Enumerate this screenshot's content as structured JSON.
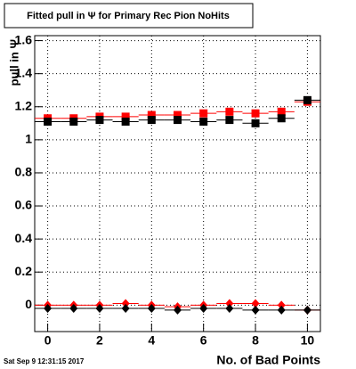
{
  "chart_data": {
    "type": "scatter",
    "title": "Fitted pull in  Ψ  for Primary Rec Pion NoHits",
    "y_label": "pull in  Ψ",
    "x_label": "No. of Bad Points",
    "timestamp": "Sat Sep  9 12:31:15 2017",
    "x": [
      0,
      1,
      2,
      3,
      4,
      5,
      6,
      7,
      8,
      9,
      10
    ],
    "series": [
      {
        "color": "#ff0000",
        "marker": "square",
        "values": [
          1.13,
          1.13,
          1.14,
          1.14,
          1.15,
          1.15,
          1.16,
          1.17,
          1.16,
          1.17,
          1.23
        ]
      },
      {
        "color": "#000000",
        "marker": "square",
        "values": [
          1.11,
          1.11,
          1.12,
          1.11,
          1.12,
          1.12,
          1.11,
          1.12,
          1.1,
          1.13,
          1.24
        ]
      },
      {
        "color": "#ff0000",
        "marker": "diamond",
        "values": [
          0.0,
          0.0,
          0.0,
          0.01,
          0.0,
          -0.01,
          0.0,
          0.01,
          0.01,
          0.0,
          -0.03
        ]
      },
      {
        "color": "#000000",
        "marker": "diamond",
        "values": [
          -0.02,
          -0.02,
          -0.02,
          -0.02,
          -0.02,
          -0.03,
          -0.02,
          -0.02,
          -0.03,
          -0.03,
          -0.03
        ]
      }
    ],
    "xlim": [
      -0.5,
      10.5
    ],
    "xticks": [
      0,
      2,
      4,
      6,
      8,
      10
    ],
    "ylim": [
      -0.16,
      1.63
    ],
    "yticks": [
      0,
      0.2,
      0.4,
      0.6,
      0.8,
      1,
      1.2,
      1.4,
      1.6
    ],
    "grid": true
  }
}
